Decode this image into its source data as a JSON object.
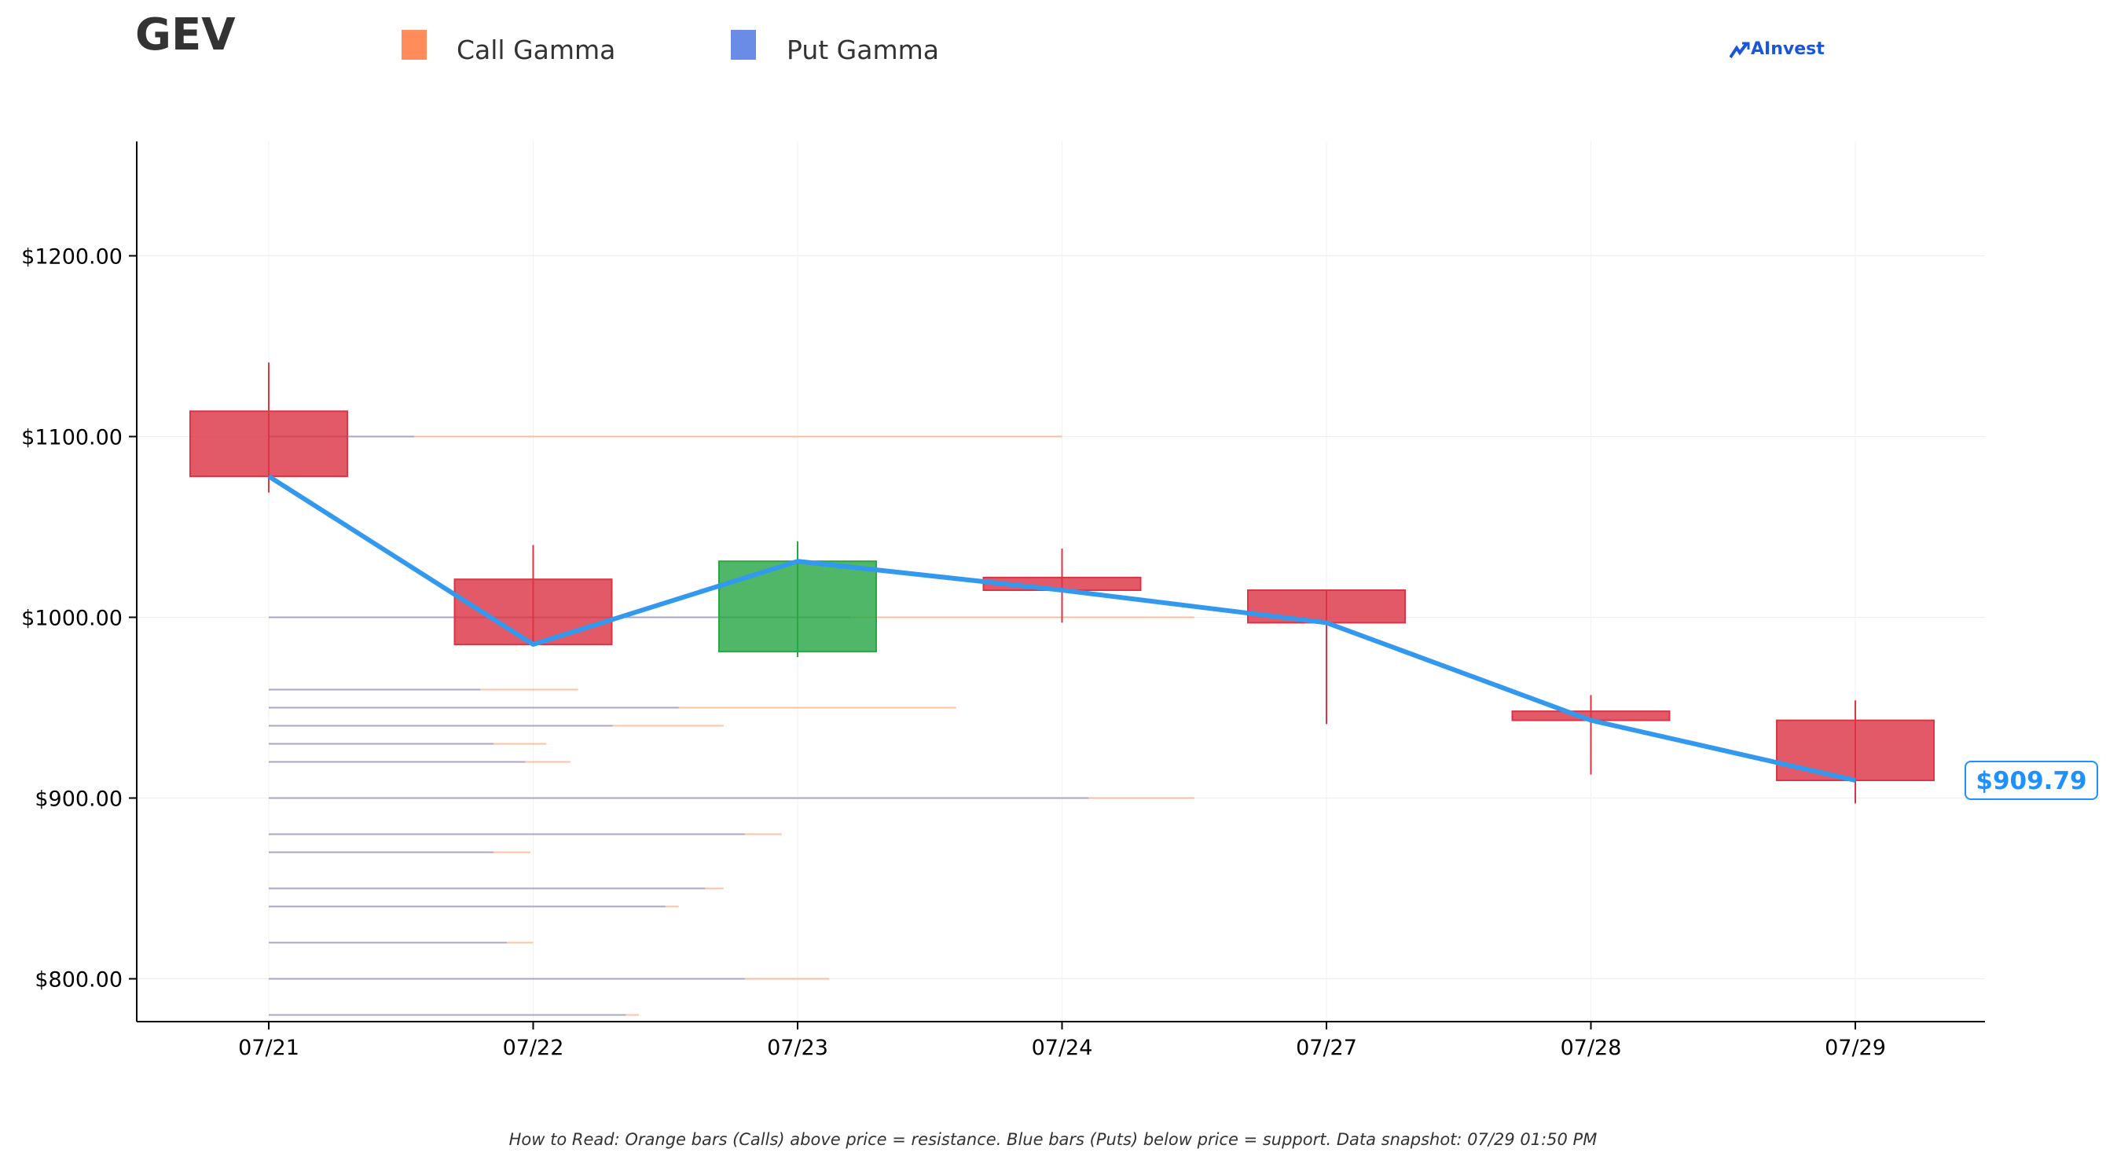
{
  "header": {
    "ticker": "GEV",
    "legend": [
      {
        "label": "Call Gamma",
        "color": "#ff8c5a"
      },
      {
        "label": "Put Gamma",
        "color": "#6b8ce6"
      }
    ],
    "logo_text": "AInvest"
  },
  "footnote": "How to Read: Orange bars (Calls) above price = resistance. Blue bars (Puts) below price = support. Data snapshot: 07/29 01:50 PM",
  "chart_data": {
    "type": "candlestick",
    "categories": [
      "07/21",
      "07/22",
      "07/23",
      "07/24",
      "07/27",
      "07/28",
      "07/29"
    ],
    "ohlc": [
      {
        "date": "07/21",
        "open": 1114,
        "high": 1141,
        "low": 1069,
        "close": 1078
      },
      {
        "date": "07/22",
        "open": 1021,
        "high": 1040,
        "low": 985,
        "close": 985
      },
      {
        "date": "07/23",
        "open": 981,
        "high": 1042,
        "low": 978,
        "close": 1031
      },
      {
        "date": "07/24",
        "open": 1022,
        "high": 1038,
        "low": 997,
        "close": 1015
      },
      {
        "date": "07/27",
        "open": 1015,
        "high": 1015,
        "low": 941,
        "close": 997
      },
      {
        "date": "07/28",
        "open": 948,
        "high": 957,
        "low": 913,
        "close": 943
      },
      {
        "date": "07/29",
        "open": 943,
        "high": 954,
        "low": 897,
        "close": 909.79
      }
    ],
    "close_line": [
      1078,
      985,
      1031,
      1015,
      997,
      943,
      909.79
    ],
    "last_price_label": "$909.79",
    "gamma_levels": [
      {
        "strike": 1100,
        "put_end": 0.55,
        "call_end": 3.0
      },
      {
        "strike": 1000,
        "put_end": 2.2,
        "call_end": 3.5
      },
      {
        "strike": 960,
        "put_end": 0.8,
        "call_end": 1.17
      },
      {
        "strike": 950,
        "put_end": 1.55,
        "call_end": 2.6
      },
      {
        "strike": 940,
        "put_end": 1.3,
        "call_end": 1.72
      },
      {
        "strike": 930,
        "put_end": 0.85,
        "call_end": 1.05
      },
      {
        "strike": 920,
        "put_end": 0.97,
        "call_end": 1.14
      },
      {
        "strike": 900,
        "put_end": 3.1,
        "call_end": 3.5
      },
      {
        "strike": 880,
        "put_end": 1.8,
        "call_end": 1.94
      },
      {
        "strike": 870,
        "put_end": 0.85,
        "call_end": 0.99
      },
      {
        "strike": 850,
        "put_end": 1.65,
        "call_end": 1.72
      },
      {
        "strike": 840,
        "put_end": 1.5,
        "call_end": 1.55
      },
      {
        "strike": 820,
        "put_end": 0.9,
        "call_end": 1.0
      },
      {
        "strike": 800,
        "put_end": 1.8,
        "call_end": 2.12
      },
      {
        "strike": 780,
        "put_end": 1.35,
        "call_end": 1.4
      }
    ],
    "yticks": [
      800,
      900,
      1000,
      1100,
      1200
    ],
    "ytick_labels": [
      "$800.00",
      "$900.00",
      "$1000.00",
      "$1100.00",
      "$1200.00"
    ],
    "ylim": [
      776,
      1262
    ],
    "grid": true,
    "colors": {
      "down": "#dc3545",
      "up": "#28a745",
      "line": "#3399ee",
      "call": "#ff8c5a",
      "put": "#6b8ce6"
    }
  }
}
